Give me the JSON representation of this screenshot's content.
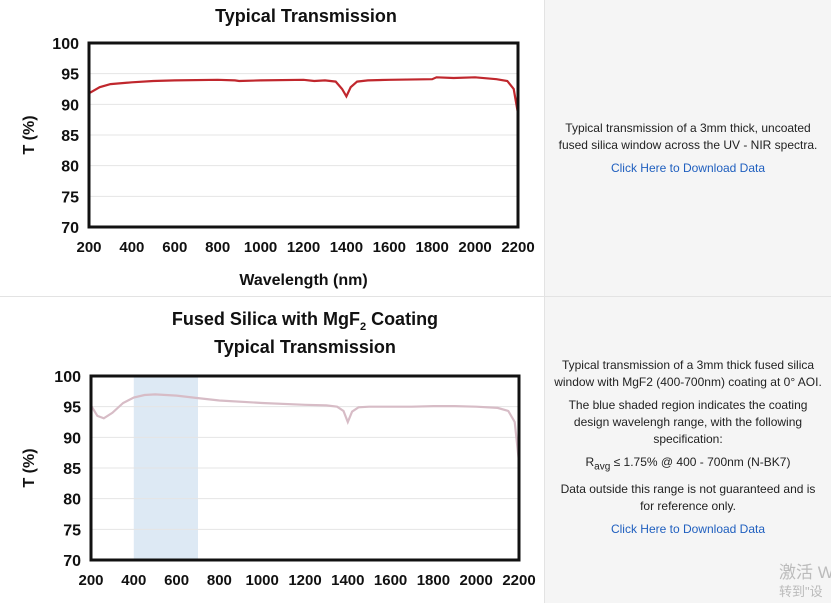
{
  "chart_data": [
    {
      "type": "line",
      "title": "Typical Transmission",
      "xlabel": "Wavelength (nm)",
      "ylabel": "T (%)",
      "xlim": [
        200,
        2200
      ],
      "ylim": [
        70,
        100
      ],
      "xticks": [
        "200",
        "400",
        "600",
        "800",
        "1000",
        "1200",
        "1400",
        "1600",
        "1800",
        "2000",
        "2200"
      ],
      "yticks": [
        "100",
        "95",
        "90",
        "85",
        "80",
        "75",
        "70"
      ],
      "grid": true,
      "color": "#c0272d",
      "x": [
        200,
        250,
        300,
        400,
        500,
        600,
        800,
        880,
        900,
        1000,
        1200,
        1250,
        1300,
        1350,
        1380,
        1400,
        1420,
        1450,
        1500,
        1600,
        1800,
        1820,
        1900,
        2000,
        2100,
        2150,
        2180,
        2200
      ],
      "y": [
        91.8,
        92.8,
        93.3,
        93.6,
        93.8,
        93.9,
        94,
        93.9,
        93.8,
        93.9,
        94,
        93.8,
        93.9,
        93.7,
        92.5,
        91.3,
        92.8,
        93.7,
        93.9,
        94,
        94.1,
        94.4,
        94.3,
        94.4,
        94.1,
        93.8,
        92.5,
        88.5
      ]
    },
    {
      "type": "line",
      "title": "Fused Silica with MgF",
      "title_sub": "2",
      "title_after": " Coating",
      "title_line2": "Typical Transmission",
      "ylabel": "T (%)",
      "xlim": [
        200,
        2200
      ],
      "ylim": [
        70,
        100
      ],
      "xticks": [
        "200",
        "400",
        "600",
        "800",
        "1000",
        "1200",
        "1400",
        "1600",
        "1800",
        "2000",
        "2200"
      ],
      "yticks": [
        "100",
        "95",
        "90",
        "85",
        "80",
        "75",
        "70"
      ],
      "grid": true,
      "color": "#d7bcc6",
      "shaded_range": [
        400,
        700
      ],
      "shade_color": "#dde9f4",
      "x": [
        200,
        230,
        260,
        300,
        350,
        400,
        450,
        500,
        600,
        700,
        800,
        1000,
        1200,
        1300,
        1350,
        1380,
        1400,
        1420,
        1450,
        1500,
        1700,
        1800,
        1900,
        2000,
        2100,
        2150,
        2180,
        2200
      ],
      "y": [
        95.2,
        93.5,
        93.1,
        94,
        95.6,
        96.5,
        96.9,
        97,
        96.8,
        96.4,
        96,
        95.6,
        95.3,
        95.2,
        95,
        94.3,
        92.5,
        94.2,
        94.9,
        95,
        95,
        95.1,
        95.1,
        95,
        94.8,
        94.3,
        92.5,
        86
      ]
    }
  ],
  "rows": [
    {
      "description": "Typical transmission of a 3mm thick, uncoated fused silica window across the UV - NIR spectra.",
      "link": "Click Here to Download Data"
    },
    {
      "description": "Typical transmission of a 3mm thick fused silica window with MgF2 (400-700nm) coating at 0° AOI.",
      "description2": "The blue shaded region indicates the coating design wavelengh range, with the following specification:",
      "spec_r": "R",
      "spec_sub": "avg",
      "spec_rest": " ≤ 1.75% @ 400 - 700nm (N-BK7)",
      "note": "Data outside this range is not guaranteed and is for reference only.",
      "link": "Click Here to Download Data"
    }
  ],
  "watermark": {
    "line1": "激活 W",
    "line2": "转到\"设"
  }
}
